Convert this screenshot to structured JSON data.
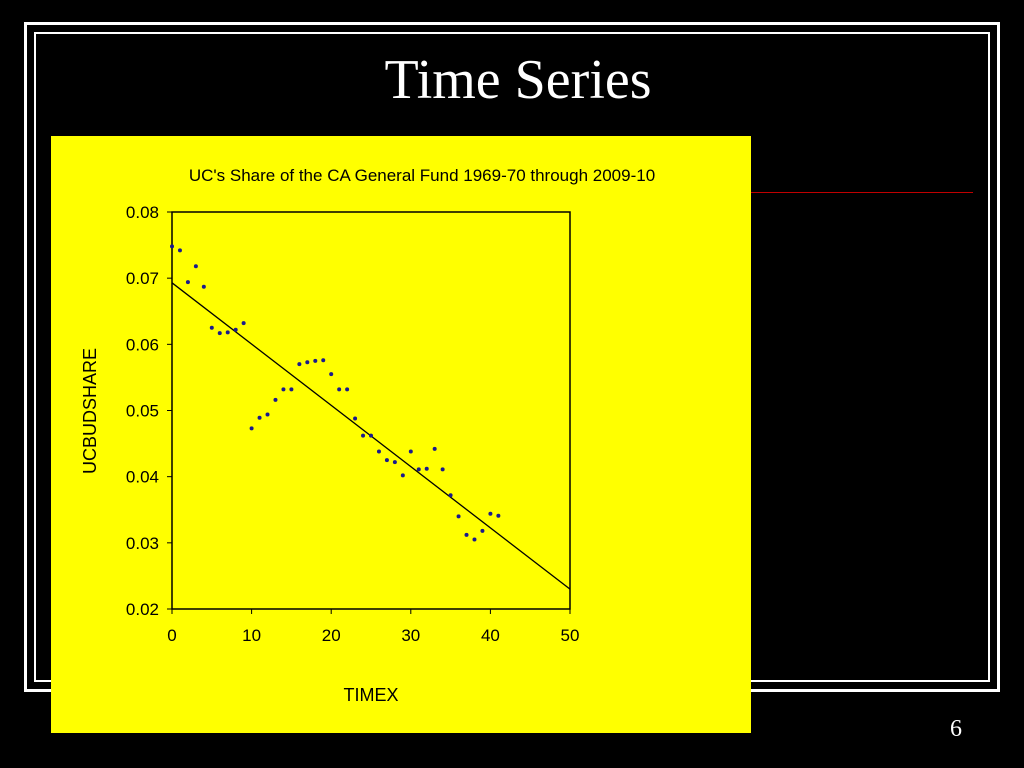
{
  "slide": {
    "title": "Time Series",
    "page_number": "6"
  },
  "colors": {
    "background": "#000000",
    "chart_background": "#ffff00",
    "accent_line": "#c00000",
    "text": "#ffffff"
  },
  "chart_data": {
    "type": "scatter",
    "title": "UC's Share of the CA General Fund 1969-70 through 2009-10",
    "xlabel": "TIMEX",
    "ylabel": "UCBUDSHARE",
    "xlim": [
      0,
      50
    ],
    "ylim": [
      0.02,
      0.08
    ],
    "x_ticks": [
      0,
      10,
      20,
      30,
      40,
      50
    ],
    "y_ticks": [
      0.02,
      0.03,
      0.04,
      0.05,
      0.06,
      0.07,
      0.08
    ],
    "y_tick_labels": [
      "0.02",
      "0.03",
      "0.04",
      "0.05",
      "0.06",
      "0.07",
      "0.08"
    ],
    "grid": false,
    "points": [
      [
        0,
        0.0748
      ],
      [
        1,
        0.0742
      ],
      [
        2,
        0.0694
      ],
      [
        3,
        0.0718
      ],
      [
        4,
        0.0687
      ],
      [
        5,
        0.0625
      ],
      [
        6,
        0.0617
      ],
      [
        7,
        0.0618
      ],
      [
        8,
        0.0622
      ],
      [
        9,
        0.0632
      ],
      [
        10,
        0.0473
      ],
      [
        11,
        0.0489
      ],
      [
        12,
        0.0494
      ],
      [
        13,
        0.0516
      ],
      [
        14,
        0.0532
      ],
      [
        15,
        0.0532
      ],
      [
        16,
        0.057
      ],
      [
        17,
        0.0573
      ],
      [
        18,
        0.0575
      ],
      [
        19,
        0.0576
      ],
      [
        20,
        0.0555
      ],
      [
        21,
        0.0532
      ],
      [
        22,
        0.0532
      ],
      [
        23,
        0.0488
      ],
      [
        24,
        0.0462
      ],
      [
        25,
        0.0462
      ],
      [
        26,
        0.0438
      ],
      [
        27,
        0.0425
      ],
      [
        28,
        0.0422
      ],
      [
        29,
        0.0402
      ],
      [
        30,
        0.0438
      ],
      [
        31,
        0.0411
      ],
      [
        32,
        0.0412
      ],
      [
        33,
        0.0442
      ],
      [
        34,
        0.0411
      ],
      [
        35,
        0.0372
      ],
      [
        36,
        0.034
      ],
      [
        37,
        0.0312
      ],
      [
        38,
        0.0305
      ],
      [
        39,
        0.0318
      ],
      [
        40,
        0.0344
      ],
      [
        41,
        0.0341
      ]
    ],
    "fit_line": {
      "x": [
        0,
        50
      ],
      "y": [
        0.0693,
        0.023
      ]
    }
  }
}
